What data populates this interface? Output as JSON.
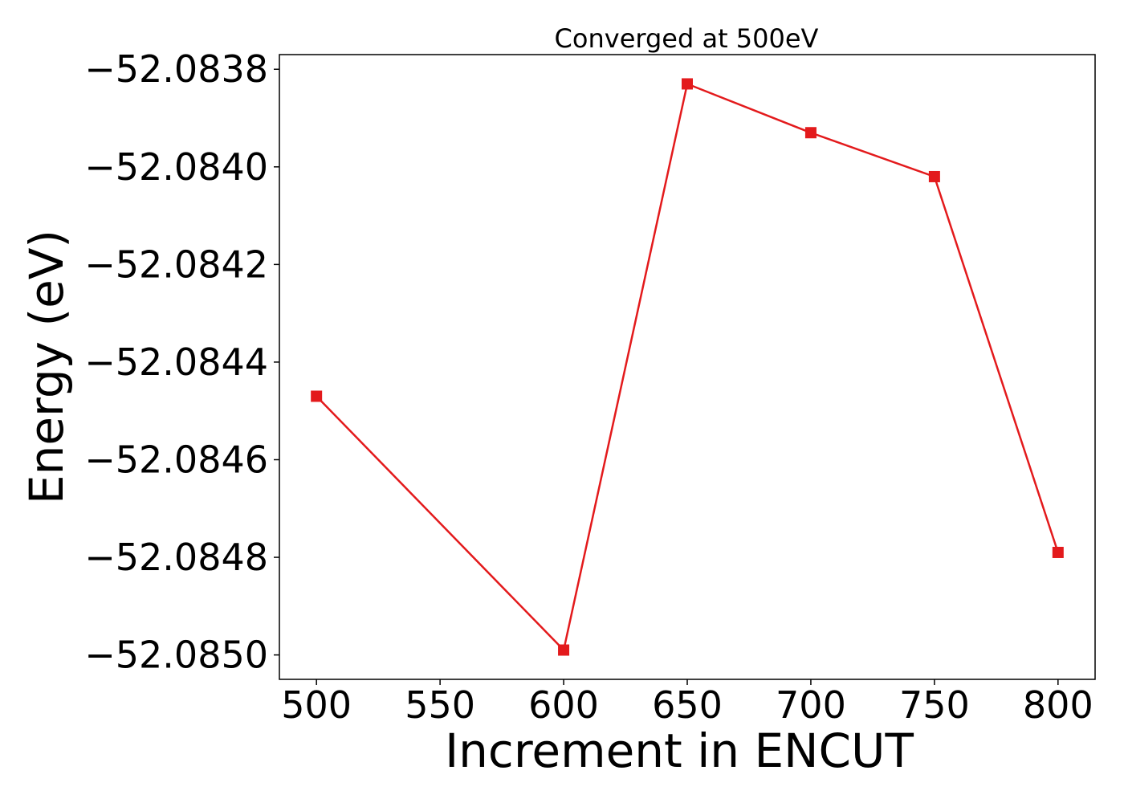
{
  "chart_data": {
    "type": "line",
    "title": "Converged at 500eV",
    "xlabel": "Increment in ENCUT",
    "ylabel": "Energy (eV)",
    "x": [
      500,
      600,
      650,
      700,
      750,
      800
    ],
    "series": [
      {
        "values": [
          -52.08447,
          -52.08499,
          -52.08383,
          -52.08393,
          -52.08402,
          -52.08479
        ],
        "color": "#e31a1c",
        "marker": "square"
      }
    ],
    "xlim": [
      485,
      815
    ],
    "ylim": [
      -52.08505,
      -52.08377
    ],
    "x_ticks": [
      500,
      550,
      600,
      650,
      700,
      750,
      800
    ],
    "x_tick_labels": [
      "500",
      "550",
      "600",
      "650",
      "700",
      "750",
      "800"
    ],
    "y_ticks": [
      -52.0838,
      -52.084,
      -52.0842,
      -52.0844,
      -52.0846,
      -52.0848,
      -52.085
    ],
    "y_tick_labels": [
      "−52.0838",
      "−52.0840",
      "−52.0842",
      "−52.0844",
      "−52.0846",
      "−52.0848",
      "−52.0850"
    ],
    "grid": false,
    "legend": "none"
  }
}
